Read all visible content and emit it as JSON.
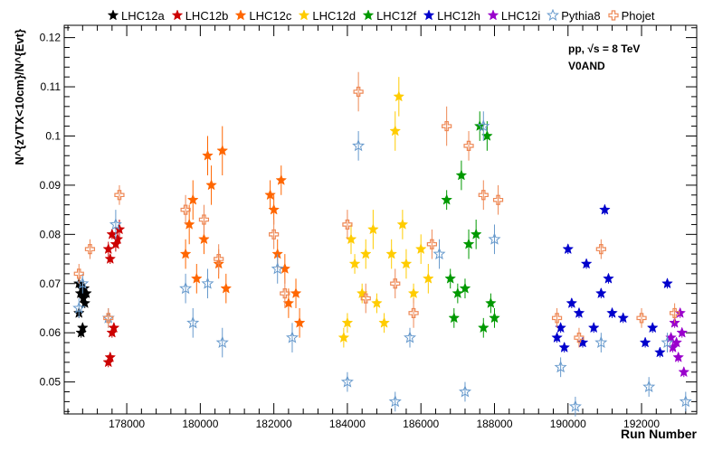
{
  "chart_data": {
    "type": "scatter",
    "xlabel": "Run Number",
    "ylabel": "N^{zVTX<10cm}/N^{Evt}",
    "xlim": [
      176300,
      193500
    ],
    "ylim": [
      0.0435,
      0.1225
    ],
    "x_ticks": [
      "178000",
      "180000",
      "182000",
      "184000",
      "186000",
      "188000",
      "190000",
      "192000"
    ],
    "x_tick_values": [
      178000,
      180000,
      182000,
      184000,
      186000,
      188000,
      190000,
      192000
    ],
    "y_ticks": [
      "0.05",
      "0.06",
      "0.07",
      "0.08",
      "0.09",
      "0.1",
      "0.11",
      "0.12"
    ],
    "y_tick_values": [
      0.05,
      0.06,
      0.07,
      0.08,
      0.09,
      0.1,
      0.11,
      0.12
    ],
    "annotation": {
      "line1": "pp, √s = 8 TeV",
      "line2": "V0AND"
    },
    "grid": false,
    "legend_position": "top",
    "series": [
      {
        "name": "LHC12a",
        "color": "#000000",
        "marker": "star-filled",
        "x": [
          176700,
          176740,
          176780,
          176820,
          176860,
          176900,
          176700,
          176760,
          176800,
          176840
        ],
        "y": [
          0.07,
          0.068,
          0.069,
          0.067,
          0.066,
          0.068,
          0.064,
          0.06,
          0.061,
          0.069
        ],
        "err": [
          0.001,
          0.001,
          0.001,
          0.001,
          0.001,
          0.001,
          0.001,
          0.001,
          0.001,
          0.001
        ]
      },
      {
        "name": "LHC12b",
        "color": "#cc0000",
        "marker": "star-filled",
        "x": [
          177500,
          177550,
          177600,
          177650,
          177700,
          177750,
          177800,
          177500,
          177550,
          177600
        ],
        "y": [
          0.054,
          0.055,
          0.06,
          0.061,
          0.078,
          0.079,
          0.081,
          0.077,
          0.075,
          0.08
        ],
        "err": [
          0.001,
          0.001,
          0.001,
          0.001,
          0.0015,
          0.0015,
          0.002,
          0.0015,
          0.001,
          0.001
        ]
      },
      {
        "name": "LHC12c",
        "color": "#ff6600",
        "marker": "star-filled",
        "x": [
          179600,
          179700,
          179800,
          179900,
          180100,
          180200,
          180300,
          180500,
          180600,
          180700,
          181900,
          182000,
          182100,
          182200,
          182300,
          182400,
          182600,
          182700
        ],
        "y": [
          0.076,
          0.082,
          0.087,
          0.071,
          0.079,
          0.096,
          0.09,
          0.074,
          0.097,
          0.069,
          0.088,
          0.085,
          0.076,
          0.091,
          0.073,
          0.066,
          0.068,
          0.062
        ],
        "err": [
          0.003,
          0.004,
          0.004,
          0.003,
          0.003,
          0.004,
          0.004,
          0.003,
          0.005,
          0.003,
          0.003,
          0.003,
          0.003,
          0.003,
          0.003,
          0.003,
          0.003,
          0.003
        ]
      },
      {
        "name": "LHC12d",
        "color": "#ffcc00",
        "marker": "star-filled",
        "x": [
          183900,
          184000,
          184100,
          184200,
          184400,
          184500,
          184700,
          184800,
          185000,
          185200,
          185300,
          185400,
          185500,
          185600,
          185800,
          186000,
          186200
        ],
        "y": [
          0.059,
          0.062,
          0.079,
          0.074,
          0.068,
          0.076,
          0.081,
          0.066,
          0.062,
          0.076,
          0.101,
          0.108,
          0.082,
          0.074,
          0.068,
          0.077,
          0.071
        ],
        "err": [
          0.002,
          0.002,
          0.003,
          0.002,
          0.002,
          0.003,
          0.004,
          0.002,
          0.002,
          0.003,
          0.004,
          0.004,
          0.003,
          0.003,
          0.002,
          0.003,
          0.003
        ]
      },
      {
        "name": "LHC12f",
        "color": "#009900",
        "marker": "star-filled",
        "x": [
          186700,
          186800,
          186900,
          187000,
          187100,
          187200,
          187300,
          187500,
          187600,
          187700,
          187800,
          187900,
          188000
        ],
        "y": [
          0.087,
          0.071,
          0.063,
          0.068,
          0.092,
          0.069,
          0.078,
          0.08,
          0.102,
          0.061,
          0.1,
          0.066,
          0.063
        ],
        "err": [
          0.002,
          0.002,
          0.002,
          0.002,
          0.003,
          0.002,
          0.003,
          0.003,
          0.003,
          0.002,
          0.003,
          0.002,
          0.002
        ]
      },
      {
        "name": "LHC12h",
        "color": "#0000cc",
        "marker": "star-filled",
        "x": [
          189700,
          189800,
          189900,
          190000,
          190100,
          190300,
          190400,
          190500,
          190700,
          190900,
          191000,
          191100,
          191200,
          191500,
          192100,
          192300,
          192500,
          192700
        ],
        "y": [
          0.059,
          0.061,
          0.057,
          0.077,
          0.066,
          0.064,
          0.058,
          0.074,
          0.061,
          0.068,
          0.085,
          0.071,
          0.064,
          0.063,
          0.058,
          0.061,
          0.056,
          0.07
        ],
        "err": [
          0.001,
          0.001,
          0.001,
          0.001,
          0.001,
          0.001,
          0.001,
          0.001,
          0.001,
          0.001,
          0.001,
          0.001,
          0.001,
          0.001,
          0.001,
          0.001,
          0.001,
          0.001
        ]
      },
      {
        "name": "LHC12i",
        "color": "#9900cc",
        "marker": "star-filled",
        "x": [
          192800,
          192850,
          192900,
          192950,
          193000,
          193050,
          193100,
          193150
        ],
        "y": [
          0.059,
          0.057,
          0.062,
          0.058,
          0.055,
          0.064,
          0.06,
          0.052
        ],
        "err": [
          0.001,
          0.001,
          0.001,
          0.001,
          0.001,
          0.001,
          0.001,
          0.001
        ]
      },
      {
        "name": "Pythia8",
        "color": "#6699cc",
        "marker": "star-open",
        "x": [
          176700,
          176800,
          177500,
          177700,
          179600,
          179800,
          180200,
          180600,
          182100,
          182500,
          184000,
          184300,
          185300,
          185700,
          186500,
          187200,
          187700,
          188000,
          189800,
          190200,
          190900,
          192200,
          192700,
          193200
        ],
        "y": [
          0.065,
          0.07,
          0.063,
          0.082,
          0.069,
          0.062,
          0.07,
          0.058,
          0.073,
          0.059,
          0.05,
          0.098,
          0.046,
          0.059,
          0.076,
          0.048,
          0.102,
          0.079,
          0.053,
          0.045,
          0.058,
          0.049,
          0.058,
          0.046
        ],
        "err": [
          0.002,
          0.002,
          0.002,
          0.003,
          0.003,
          0.003,
          0.003,
          0.003,
          0.003,
          0.003,
          0.002,
          0.003,
          0.002,
          0.002,
          0.003,
          0.002,
          0.003,
          0.003,
          0.002,
          0.002,
          0.002,
          0.002,
          0.002,
          0.002
        ]
      },
      {
        "name": "Phojet",
        "color": "#ee8855",
        "marker": "cross-open",
        "x": [
          176700,
          177000,
          177500,
          177800,
          179600,
          180100,
          180500,
          182000,
          182300,
          184000,
          184300,
          184500,
          185300,
          185800,
          186300,
          186700,
          187300,
          187700,
          188100,
          189700,
          190300,
          190900,
          192000,
          192900
        ],
        "y": [
          0.072,
          0.077,
          0.063,
          0.088,
          0.085,
          0.083,
          0.075,
          0.08,
          0.068,
          0.082,
          0.109,
          0.067,
          0.07,
          0.064,
          0.078,
          0.102,
          0.098,
          0.088,
          0.087,
          0.063,
          0.059,
          0.077,
          0.063,
          0.064
        ],
        "err": [
          0.002,
          0.002,
          0.002,
          0.002,
          0.003,
          0.003,
          0.003,
          0.003,
          0.003,
          0.003,
          0.004,
          0.003,
          0.003,
          0.003,
          0.003,
          0.004,
          0.003,
          0.003,
          0.003,
          0.002,
          0.002,
          0.002,
          0.002,
          0.002
        ]
      }
    ]
  }
}
